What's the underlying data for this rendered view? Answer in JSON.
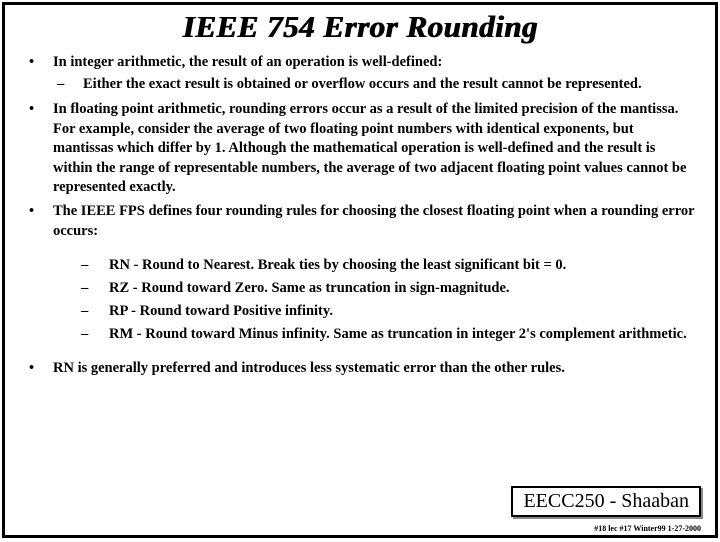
{
  "title": "IEEE 754 Error Rounding",
  "b1": "In integer arithmetic, the result of an operation is well-defined:",
  "b1a": "Either the exact result is obtained or overflow occurs and the result cannot be represented.",
  "b2": "In floating point arithmetic, rounding errors occur as a result of the limited precision of the mantissa. For example, consider the average of two floating point numbers with identical exponents, but mantissas which differ by 1. Although the mathematical operation is well-defined and the result is within the range of representable numbers, the average of two adjacent floating point values cannot be represented exactly.",
  "b3": "The IEEE FPS defines four rounding rules for choosing the closest floating point when a rounding error occurs:",
  "r1": "RN  -  Round to Nearest.   Break ties by choosing the least significant bit = 0.",
  "r2": "RZ  -  Round toward Zero. Same as truncation in sign-magnitude.",
  "r3": "RP  -  Round toward Positive infinity.",
  "r4": "RM -  Round toward Minus infinity.  Same as truncation in integer 2's complement arithmetic.",
  "b4": "RN is generally preferred and introduces less systematic error than the other rules.",
  "course": "EECC250 - Shaaban",
  "footer": "#18  lec #17   Winter99   1-27-2000"
}
